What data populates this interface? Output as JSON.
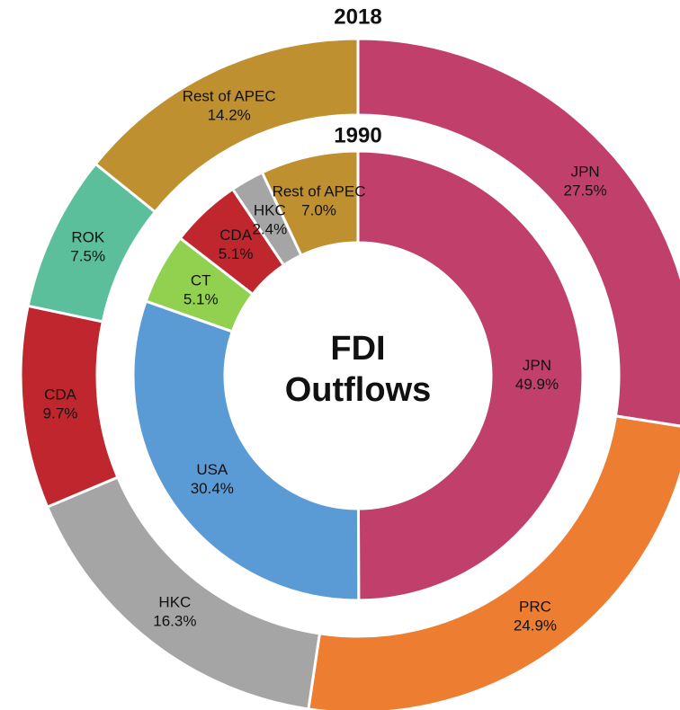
{
  "chart_data": [
    {
      "type": "donut",
      "title": "2018",
      "categories": [
        "JPN",
        "PRC",
        "HKC",
        "CDA",
        "ROK",
        "Rest of APEC"
      ],
      "values": [
        27.5,
        24.9,
        16.3,
        9.7,
        7.5,
        14.2
      ],
      "value_labels": [
        "27.5%",
        "24.9%",
        "16.3%",
        "9.7%",
        "7.5%",
        "14.2%"
      ],
      "colors": [
        "#c0406b",
        "#ed7d31",
        "#a5a5a5",
        "#c0262d",
        "#5bbf9c",
        "#bf9030"
      ]
    },
    {
      "type": "donut",
      "title": "1990",
      "categories": [
        "JPN",
        "USA",
        "CT",
        "CDA",
        "HKC",
        "Rest of APEC"
      ],
      "values": [
        49.9,
        30.4,
        5.1,
        5.1,
        2.4,
        7.0
      ],
      "value_labels": [
        "49.9%",
        "30.4%",
        "5.1%",
        "5.1%",
        "2.4%",
        "7.0%"
      ],
      "colors": [
        "#c0406b",
        "#5b9bd5",
        "#92d050",
        "#c0262d",
        "#a5a5a5",
        "#bf9030"
      ],
      "center_label": [
        "FDI",
        "Outflows"
      ]
    }
  ]
}
